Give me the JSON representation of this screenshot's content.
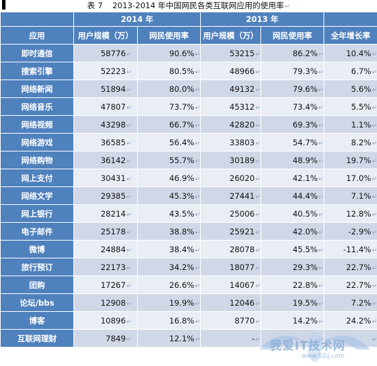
{
  "caption": {
    "label": "表",
    "number": "7",
    "text": "2013-2014 年中国网民各类互联网应用的使用率"
  },
  "headers": {
    "year_2014": "2014 年",
    "year_2013": "2013 年",
    "app": "应用",
    "users": "用户规模（万）",
    "rate": "网民使用率",
    "growth": "全年增长率"
  },
  "rows": [
    {
      "app": "即时通信",
      "u2014": "58776",
      "r2014": "90.6%",
      "u2013": "53215",
      "r2013": "86.2%",
      "growth": "10.4%"
    },
    {
      "app": "搜索引擎",
      "u2014": "52223",
      "r2014": "80.5%",
      "u2013": "48966",
      "r2013": "79.3%",
      "growth": "6.7%"
    },
    {
      "app": "网络新闻",
      "u2014": "51894",
      "r2014": "80.0%",
      "u2013": "49132",
      "r2013": "79.6%",
      "growth": "5.6%"
    },
    {
      "app": "网络音乐",
      "u2014": "47807",
      "r2014": "73.7%",
      "u2013": "45312",
      "r2013": "73.4%",
      "growth": "5.5%"
    },
    {
      "app": "网络视频",
      "u2014": "43298",
      "r2014": "66.7%",
      "u2013": "42820",
      "r2013": "69.3%",
      "growth": "1.1%"
    },
    {
      "app": "网络游戏",
      "u2014": "36585",
      "r2014": "56.4%",
      "u2013": "33803",
      "r2013": "54.7%",
      "growth": "8.2%"
    },
    {
      "app": "网络购物",
      "u2014": "36142",
      "r2014": "55.7%",
      "u2013": "30189",
      "r2013": "48.9%",
      "growth": "19.7%"
    },
    {
      "app": "网上支付",
      "u2014": "30431",
      "r2014": "46.9%",
      "u2013": "26020",
      "r2013": "42.1%",
      "growth": "17.0%"
    },
    {
      "app": "网络文学",
      "u2014": "29385",
      "r2014": "45.3%",
      "u2013": "27441",
      "r2013": "44.4%",
      "growth": "7.1%"
    },
    {
      "app": "网上银行",
      "u2014": "28214",
      "r2014": "43.5%",
      "u2013": "25006",
      "r2013": "40.5%",
      "growth": "12.8%"
    },
    {
      "app": "电子邮件",
      "u2014": "25178",
      "r2014": "38.8%",
      "u2013": "25921",
      "r2013": "42.0%",
      "growth": "-2.9%"
    },
    {
      "app": "微博",
      "u2014": "24884",
      "r2014": "38.4%",
      "u2013": "28078",
      "r2013": "45.5%",
      "growth": "-11.4%"
    },
    {
      "app": "旅行预订",
      "u2014": "22173",
      "r2014": "34.2%",
      "u2013": "18077",
      "r2013": "29.3%",
      "growth": "22.7%"
    },
    {
      "app": "团购",
      "u2014": "17267",
      "r2014": "26.6%",
      "u2013": "14067",
      "r2013": "22.8%",
      "growth": "22.7%"
    },
    {
      "app": "论坛/bbs",
      "u2014": "12908",
      "r2014": "19.9%",
      "u2013": "12046",
      "r2013": "19.5%",
      "growth": "7.2%"
    },
    {
      "app": "博客",
      "u2014": "10896",
      "r2014": "16.8%",
      "u2013": "8770",
      "r2013": "14.2%",
      "growth": "24.2%"
    },
    {
      "app": "互联网理财",
      "u2014": "7849",
      "r2014": "12.1%",
      "u2013": "-",
      "r2013": "",
      "growth": ""
    }
  ],
  "watermark": {
    "text": "我爱IT技术网",
    "url": "www.52ij.com"
  },
  "colors": {
    "header_bg": "#4f81bd",
    "row_odd": "#d0d8e8",
    "row_even": "#e9edf4"
  }
}
